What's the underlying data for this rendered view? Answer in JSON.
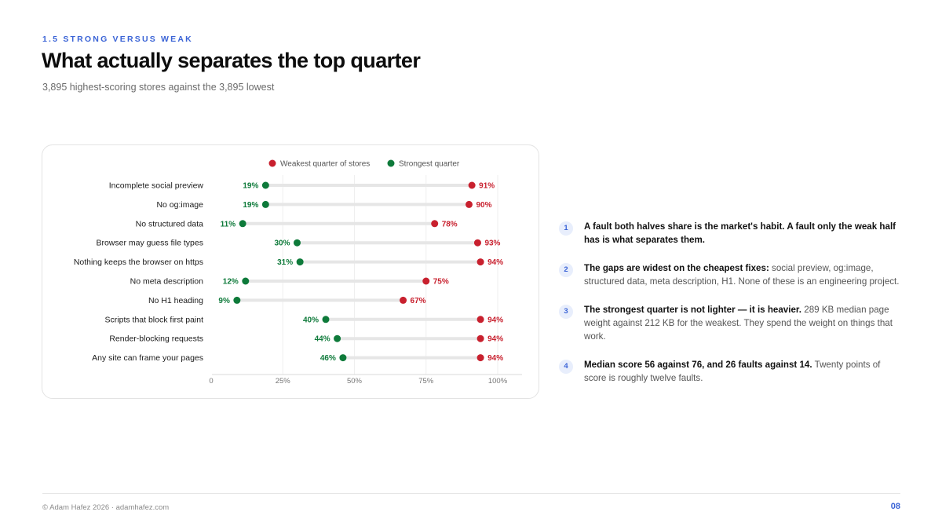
{
  "header": {
    "eyebrow": "1.5 STRONG VERSUS WEAK",
    "title": "What actually separates the top quarter",
    "subtitle": "3,895 highest-scoring stores against the 3,895 lowest"
  },
  "colors": {
    "weak": "#c8202e",
    "strong": "#0e7a3a",
    "accent": "#3a63d6",
    "track": "#e6e6e6"
  },
  "chart_data": {
    "type": "dumbbell",
    "legend_placement": "top-center",
    "x_ticks": [
      "0",
      "25%",
      "50%",
      "75%",
      "100%"
    ],
    "xlim": [
      0,
      100
    ],
    "grid": true,
    "value_suffix": "%",
    "categories": [
      "Incomplete social preview",
      "No og:image",
      "No structured data",
      "Browser may guess file types",
      "Nothing keeps the browser on https",
      "No meta description",
      "No H1 heading",
      "Scripts that block first paint",
      "Render-blocking requests",
      "Any site can frame your pages"
    ],
    "series": [
      {
        "name": "Weakest quarter of stores",
        "values": [
          91,
          90,
          78,
          93,
          94,
          75,
          67,
          94,
          94,
          94
        ]
      },
      {
        "name": "Strongest quarter",
        "values": [
          19,
          19,
          11,
          30,
          31,
          12,
          9,
          40,
          44,
          46
        ]
      }
    ]
  },
  "notes": [
    {
      "num": "1",
      "lead": "A fault both halves share is the market's habit. A fault only the weak half has is what separates them.",
      "body": ""
    },
    {
      "num": "2",
      "lead": "The gaps are widest on the cheapest fixes:",
      "body": " social preview, og:image, structured data, meta description, H1. None of these is an engineering project."
    },
    {
      "num": "3",
      "lead": "The strongest quarter is not lighter — it is heavier.",
      "body": " 289 KB median page weight against 212 KB for the weakest. They spend the weight on things that work."
    },
    {
      "num": "4",
      "lead": "Median score 56 against 76, and 26 faults against 14.",
      "body": " Twenty points of score is roughly twelve faults."
    }
  ],
  "footer": {
    "credit": "© Adam Hafez 2026 · adamhafez.com",
    "page": "08"
  }
}
